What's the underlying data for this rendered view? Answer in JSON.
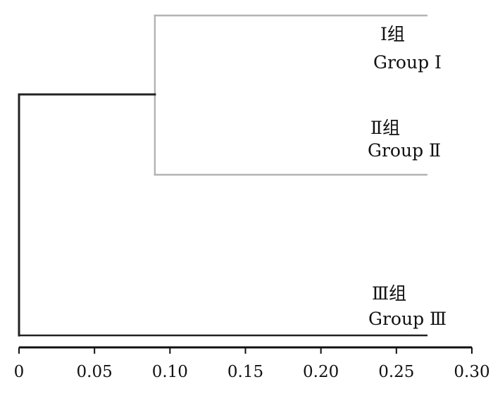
{
  "chart_data": {
    "type": "dendrogram",
    "orientation": "horizontal",
    "xlim": [
      0,
      0.3
    ],
    "x_ticks": [
      0,
      0.05,
      0.1,
      0.15,
      0.2,
      0.25,
      0.3
    ],
    "x_tick_labels": [
      "0",
      "0.05",
      "0.10",
      "0.15",
      "0.20",
      "0.25",
      "0.30"
    ],
    "leaves": [
      {
        "id": "g1",
        "label_cn": "Ⅰ组",
        "label_en": "Group Ⅰ",
        "end": 0.27,
        "color": "#b3b3b3"
      },
      {
        "id": "g2",
        "label_cn": "Ⅱ组",
        "label_en": "Group Ⅱ",
        "end": 0.27,
        "color": "#b3b3b3"
      },
      {
        "id": "g3",
        "label_cn": "Ⅲ组",
        "label_en": "Group Ⅲ",
        "end": 0.27,
        "color": "#222222"
      }
    ],
    "merges": [
      {
        "children": [
          "g1",
          "g2"
        ],
        "height": 0.09,
        "color": "#b3b3b3"
      },
      {
        "children": [
          "g1g2",
          "g3"
        ],
        "height": 0.0,
        "color": "#222222"
      }
    ]
  }
}
